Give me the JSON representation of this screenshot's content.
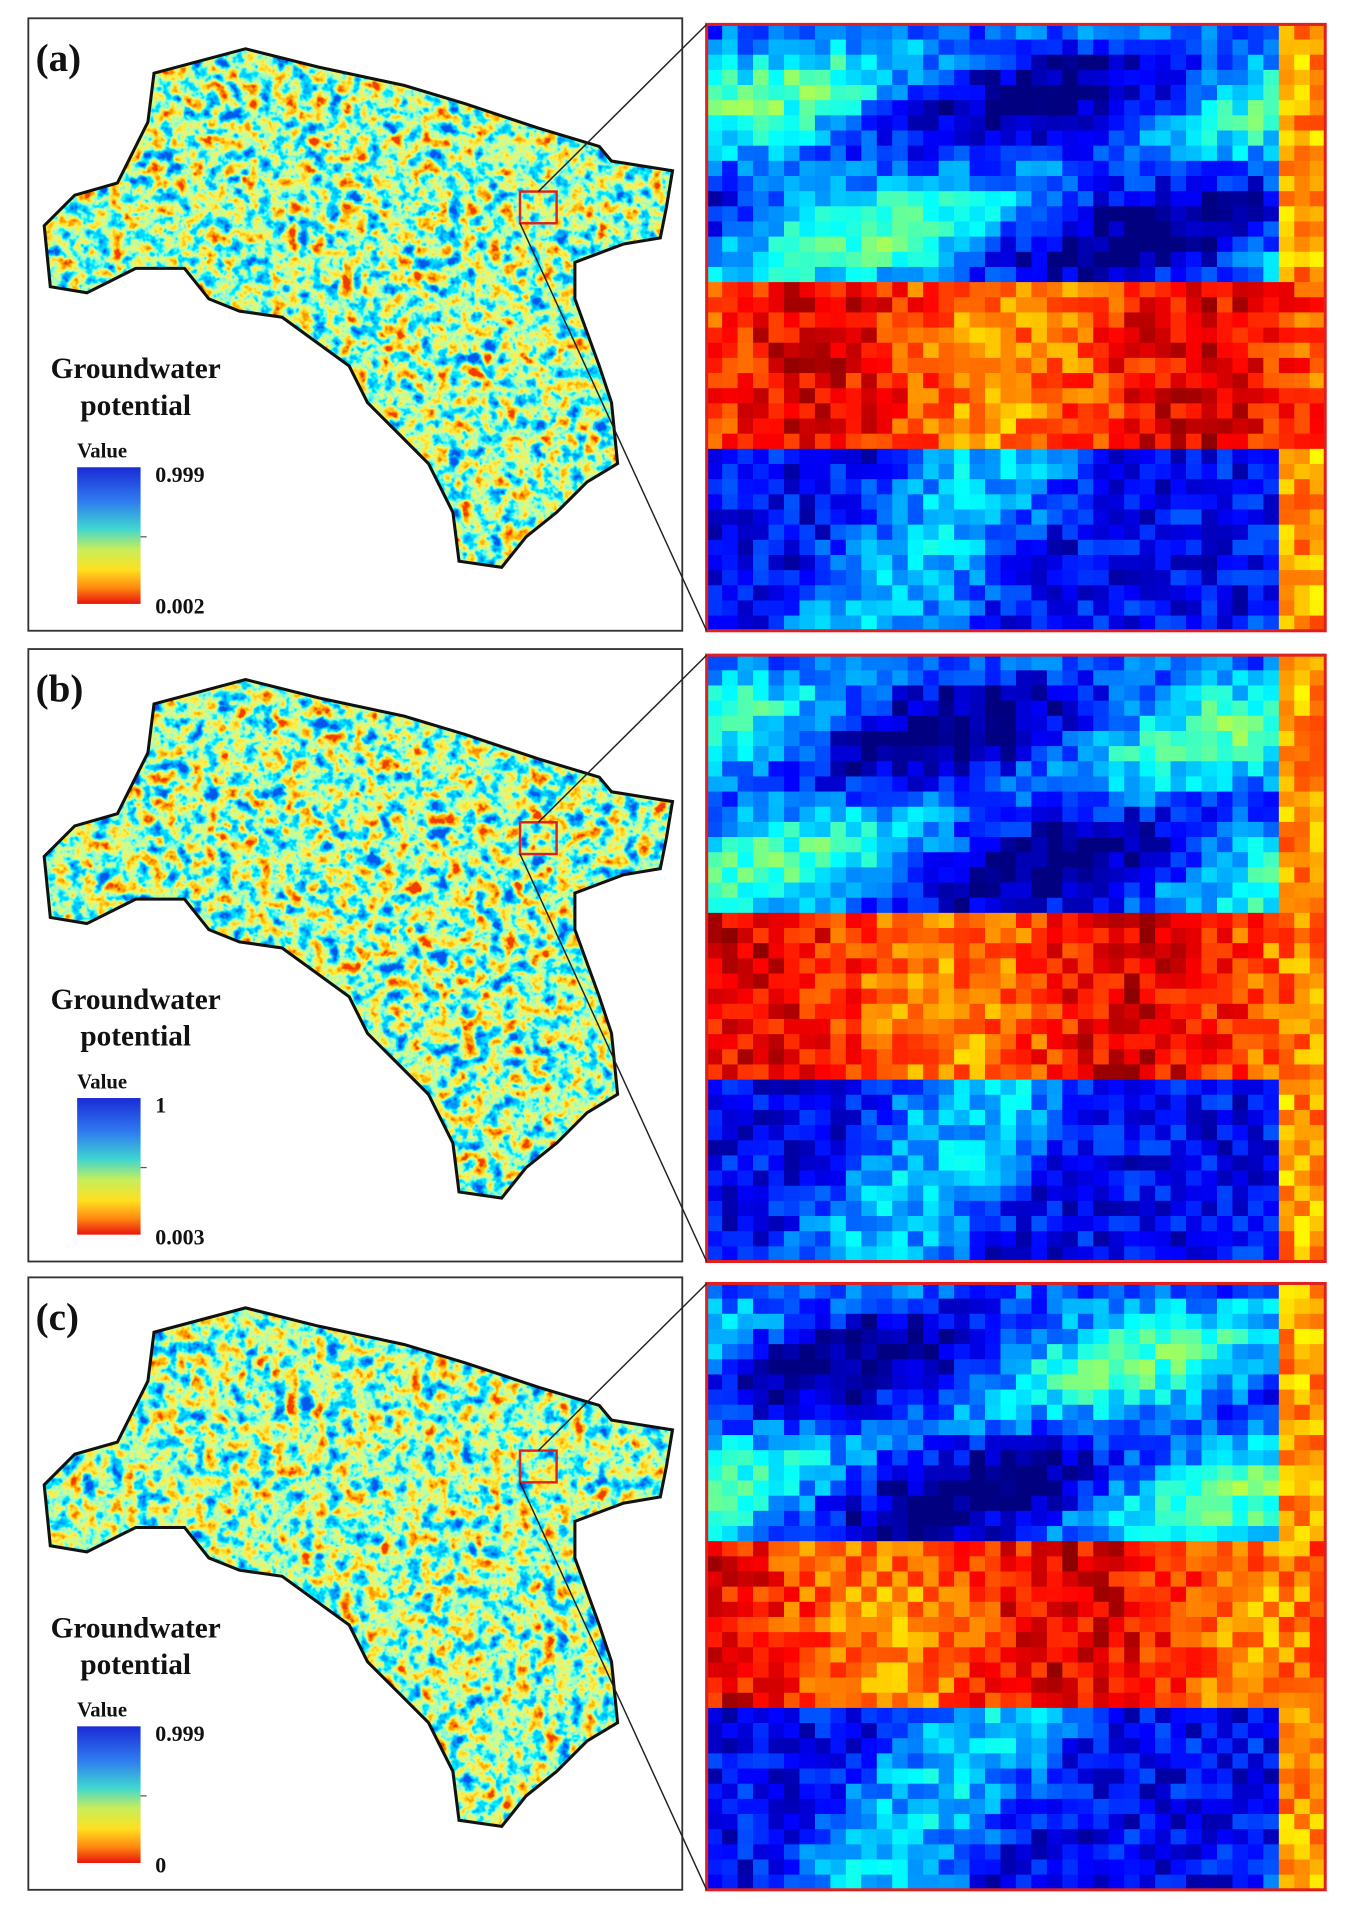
{
  "panels": [
    {
      "label": "(a)",
      "legend_title": [
        "Groundwater",
        "potential"
      ],
      "legend_heading": "Value",
      "max": "0.999",
      "min": "0.002"
    },
    {
      "label": "(b)",
      "legend_title": [
        "Groundwater",
        "potential"
      ],
      "legend_heading": "Value",
      "max": "1",
      "min": "0.003"
    },
    {
      "label": "(c)",
      "legend_title": [
        "Groundwater",
        "potential"
      ],
      "legend_heading": "Value",
      "max": "0.999",
      "min": "0"
    }
  ]
}
